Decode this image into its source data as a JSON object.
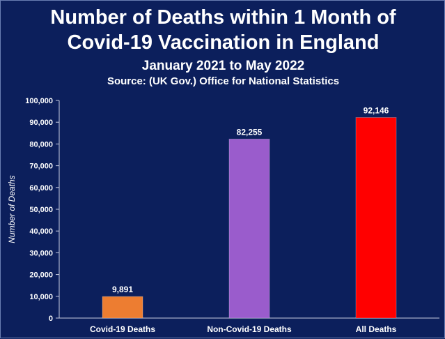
{
  "header": {
    "title_line1": "Number of Deaths within 1 Month of",
    "title_line2": "Covid-19 Vaccination in England",
    "subtitle": "January 2021 to May 2022",
    "source": "Source: (UK Gov.) Office for National Statistics"
  },
  "chart_data": {
    "type": "bar",
    "title": "Number of Deaths within 1 Month of Covid-19 Vaccination in England",
    "subtitle": "January 2021 to May 2022",
    "xlabel": "",
    "ylabel": "Number of Deaths",
    "ylim": [
      0,
      100000
    ],
    "yticks": [
      0,
      10000,
      20000,
      30000,
      40000,
      50000,
      60000,
      70000,
      80000,
      90000,
      100000
    ],
    "ytick_labels": [
      "0",
      "10,000",
      "20,000",
      "30,000",
      "40,000",
      "50,000",
      "60,000",
      "70,000",
      "80,000",
      "90,000",
      "100,000"
    ],
    "categories": [
      "Covid-19 Deaths",
      "Non-Covid-19 Deaths",
      "All Deaths"
    ],
    "values": [
      9891,
      82255,
      92146
    ],
    "value_labels": [
      "9,891",
      "82,255",
      "92,146"
    ],
    "colors": [
      "#ed7d31",
      "#9a5ccc",
      "#ff0000"
    ],
    "grid": false,
    "legend": "none"
  },
  "colors": {
    "background": "#0c1f5c",
    "text": "#ffffff",
    "axis": "#c8cde0"
  }
}
